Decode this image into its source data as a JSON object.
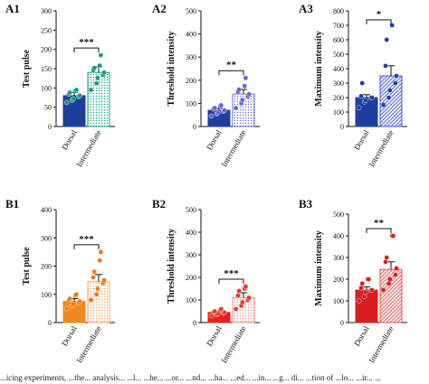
{
  "chart_data": [
    {
      "id": "A1",
      "type": "bar",
      "panel_label": "A1",
      "ylabel": "Test pulse",
      "categories": [
        "Dorsal",
        "Intermediate"
      ],
      "ylim": [
        0,
        300
      ],
      "yticks": [
        0,
        50,
        100,
        150,
        200,
        250,
        300
      ],
      "values": [
        80,
        140
      ],
      "errors": [
        8,
        15
      ],
      "bar_colors": [
        "#1f3f9e",
        "#11a58a"
      ],
      "bar_patterns": [
        "solid",
        "dots"
      ],
      "point_colors": [
        "#1a9a7c",
        "#1a9a7c"
      ],
      "points": [
        [
          62,
          68,
          72,
          78,
          80,
          84,
          88,
          92,
          95
        ],
        [
          95,
          112,
          126,
          134,
          140,
          146,
          152,
          158,
          185
        ]
      ],
      "significance": "***"
    },
    {
      "id": "A2",
      "type": "bar",
      "panel_label": "A2",
      "ylabel": "Threshold intensity",
      "categories": [
        "Dorsal",
        "Intermediate"
      ],
      "ylim": [
        0,
        500
      ],
      "yticks": [
        0,
        100,
        200,
        300,
        400,
        500
      ],
      "values": [
        70,
        140
      ],
      "errors": [
        8,
        20
      ],
      "bar_colors": [
        "#1f3f9e",
        "#6470c8"
      ],
      "bar_patterns": [
        "solid",
        "dots"
      ],
      "point_colors": [
        "#6666cc",
        "#6666cc"
      ],
      "points": [
        [
          45,
          55,
          60,
          66,
          70,
          76,
          80,
          88,
          92
        ],
        [
          80,
          100,
          115,
          130,
          140,
          150,
          160,
          175,
          210
        ]
      ],
      "significance": "**"
    },
    {
      "id": "A3",
      "type": "bar",
      "panel_label": "A3",
      "ylabel": "Maximum intensity",
      "categories": [
        "Dorsal",
        "Intermediate"
      ],
      "ylim": [
        0,
        800
      ],
      "yticks": [
        0,
        100,
        200,
        300,
        400,
        500,
        600,
        700,
        800
      ],
      "values": [
        200,
        350
      ],
      "errors": [
        20,
        70
      ],
      "bar_colors": [
        "#1f3f9e",
        "#4a5ad8"
      ],
      "bar_patterns": [
        "solid",
        "hatch"
      ],
      "point_colors": [
        "#1f3fa8",
        "#1f3fa8"
      ],
      "points": [
        [
          130,
          170,
          180,
          200,
          200,
          210,
          300
        ],
        [
          150,
          200,
          250,
          300,
          350,
          420,
          600,
          700
        ]
      ],
      "significance": "*"
    },
    {
      "id": "B1",
      "type": "bar",
      "panel_label": "B1",
      "ylabel": "Test pulse",
      "categories": [
        "Dorsal",
        "Intermediate"
      ],
      "ylim": [
        0,
        400
      ],
      "yticks": [
        0,
        100,
        200,
        300,
        400
      ],
      "values": [
        75,
        145
      ],
      "errors": [
        10,
        25
      ],
      "bar_colors": [
        "#f08a1e",
        "#f5a560"
      ],
      "bar_patterns": [
        "solid",
        "dots"
      ],
      "point_colors": [
        "#f07818",
        "#f07818"
      ],
      "points": [
        [
          50,
          60,
          65,
          70,
          75,
          80,
          85,
          95,
          100
        ],
        [
          80,
          100,
          120,
          140,
          150,
          160,
          180,
          220,
          250
        ]
      ],
      "significance": "***"
    },
    {
      "id": "B2",
      "type": "bar",
      "panel_label": "B2",
      "ylabel": "Threshold intensity",
      "categories": [
        "Dorsal",
        "Intermediate"
      ],
      "ylim": [
        0,
        500
      ],
      "yticks": [
        0,
        100,
        200,
        300,
        400,
        500
      ],
      "values": [
        45,
        110
      ],
      "errors": [
        5,
        22
      ],
      "bar_colors": [
        "#e8201c",
        "#f28a80"
      ],
      "bar_patterns": [
        "solid",
        "dots"
      ],
      "point_colors": [
        "#e53a30",
        "#e53a30"
      ],
      "points": [
        [
          30,
          35,
          40,
          42,
          45,
          48,
          50,
          55,
          60
        ],
        [
          60,
          75,
          90,
          100,
          110,
          120,
          140,
          150,
          160
        ]
      ],
      "significance": "***"
    },
    {
      "id": "B3",
      "type": "bar",
      "panel_label": "B3",
      "ylabel": "Maximum intensity",
      "categories": [
        "Dorsal",
        "Intermediate"
      ],
      "ylim": [
        0,
        500
      ],
      "yticks": [
        0,
        100,
        200,
        300,
        400,
        500
      ],
      "values": [
        150,
        245
      ],
      "errors": [
        15,
        35
      ],
      "bar_colors": [
        "#d81e1e",
        "#e85050"
      ],
      "bar_patterns": [
        "solid",
        "hatch"
      ],
      "point_colors": [
        "#d81e1e",
        "#d81e1e"
      ],
      "points": [
        [
          100,
          120,
          140,
          150,
          150,
          160,
          180,
          200,
          200
        ],
        [
          150,
          180,
          200,
          220,
          250,
          280,
          300,
          400,
          400
        ]
      ],
      "significance": "**"
    }
  ],
  "caption": "...icing experiments, ...the... analysis... ...l... ...he... ...or... ...nd... ...ha... ...ed... ...in... ...g... di... ...tion of ...lo... ...ir... ..."
}
